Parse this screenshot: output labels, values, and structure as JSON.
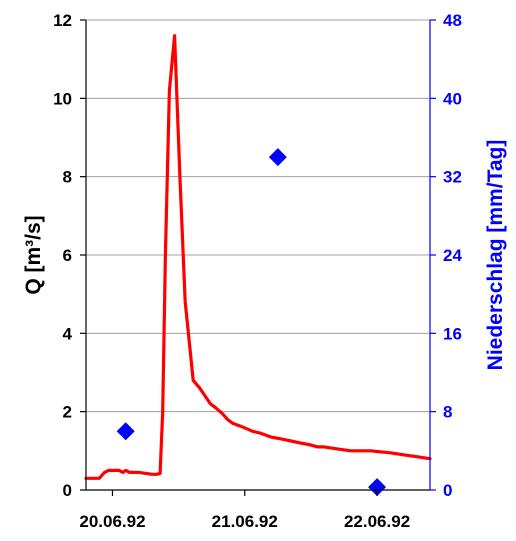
{
  "chart_data": {
    "type": "line",
    "title": "",
    "xlabel": "",
    "ylabel": "Q [m³/s]",
    "ylabel_right": "Niederschlag [mm/Tag]",
    "x_tick_labels": [
      "20.06.92",
      "21.06.92",
      "22.06.92"
    ],
    "xlim_days": [
      -0.2,
      2.4
    ],
    "ylim": [
      0,
      12
    ],
    "ylim_right": [
      0,
      48
    ],
    "y_ticks": [
      "0",
      "2",
      "4",
      "6",
      "8",
      "10",
      "12"
    ],
    "y_ticks_right": [
      "0",
      "8",
      "16",
      "24",
      "32",
      "40",
      "48"
    ],
    "grid": true,
    "colors": {
      "discharge": "#ff0000",
      "precipitation": "#0000ff",
      "axis": "#000000",
      "right_axis": "#0000ff",
      "grid": "#a0a0a0"
    },
    "series": [
      {
        "name": "",
        "axis": "left",
        "style": "line",
        "color": "#ff0000",
        "x": [
          -0.2,
          -0.1,
          -0.06,
          -0.03,
          0,
          0.05,
          0.08,
          0.1,
          0.13,
          0.2,
          0.3,
          0.33,
          0.36,
          0.38,
          0.4,
          0.43,
          0.47,
          0.51,
          0.55,
          0.58,
          0.61,
          0.66,
          0.7,
          0.74,
          0.78,
          0.83,
          0.87,
          0.91,
          0.95,
          0.99,
          1.06,
          1.12,
          1.2,
          1.28,
          1.35,
          1.42,
          1.5,
          1.55,
          1.6,
          1.7,
          1.8,
          1.95,
          2.1,
          2.2,
          2.3,
          2.4
        ],
        "y": [
          0.3,
          0.3,
          0.45,
          0.5,
          0.5,
          0.5,
          0.45,
          0.5,
          0.45,
          0.45,
          0.4,
          0.4,
          0.42,
          2.0,
          6.0,
          10.2,
          11.6,
          8.0,
          4.8,
          3.8,
          2.8,
          2.6,
          2.4,
          2.2,
          2.1,
          1.95,
          1.8,
          1.7,
          1.65,
          1.6,
          1.5,
          1.45,
          1.35,
          1.3,
          1.25,
          1.2,
          1.15,
          1.1,
          1.1,
          1.05,
          1.0,
          1.0,
          0.95,
          0.9,
          0.85,
          0.8
        ]
      },
      {
        "name": "",
        "axis": "right",
        "style": "scatter",
        "marker": "diamond",
        "color": "#0000ff",
        "x": [
          0.1,
          1.25,
          2.0
        ],
        "y": [
          6,
          34,
          0.3
        ]
      }
    ]
  }
}
